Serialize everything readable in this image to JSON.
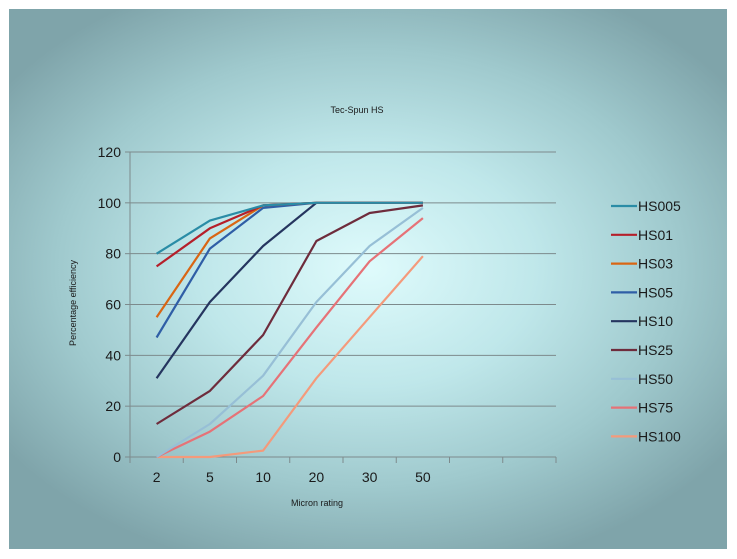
{
  "chart_data": {
    "type": "line",
    "title": "Tec-Spun HS",
    "xlabel": "Micron rating",
    "ylabel": "Percentage efficiency",
    "categories": [
      "2",
      "5",
      "10",
      "20",
      "30",
      "50"
    ],
    "category_slots": 8,
    "ylim": [
      0,
      120
    ],
    "yticks": [
      0,
      20,
      40,
      60,
      80,
      100,
      120
    ],
    "grid": true,
    "legend_position": "right",
    "series": [
      {
        "name": "HS005",
        "color": "#2a8ca6",
        "values": [
          80,
          93,
          99,
          100,
          100,
          100
        ]
      },
      {
        "name": "HS01",
        "color": "#b51f2a",
        "values": [
          75,
          90,
          99,
          100,
          100,
          100
        ]
      },
      {
        "name": "HS03",
        "color": "#d96614",
        "values": [
          55,
          86,
          99,
          100,
          100,
          100
        ]
      },
      {
        "name": "HS05",
        "color": "#2f5ea6",
        "values": [
          47,
          82,
          98,
          100,
          100,
          100
        ]
      },
      {
        "name": "HS10",
        "color": "#25355f",
        "values": [
          31,
          61,
          83,
          100,
          100,
          100
        ]
      },
      {
        "name": "HS25",
        "color": "#6e2c3c",
        "values": [
          13,
          26,
          48,
          85,
          96,
          99
        ]
      },
      {
        "name": "HS50",
        "color": "#97bfd6",
        "values": [
          0,
          13,
          32,
          61,
          83,
          98
        ]
      },
      {
        "name": "HS75",
        "color": "#e67277",
        "values": [
          0,
          10,
          24,
          51,
          77,
          94
        ]
      },
      {
        "name": "HS100",
        "color": "#f49a7b",
        "values": [
          0,
          0,
          2.5,
          31,
          55,
          79
        ]
      }
    ]
  }
}
